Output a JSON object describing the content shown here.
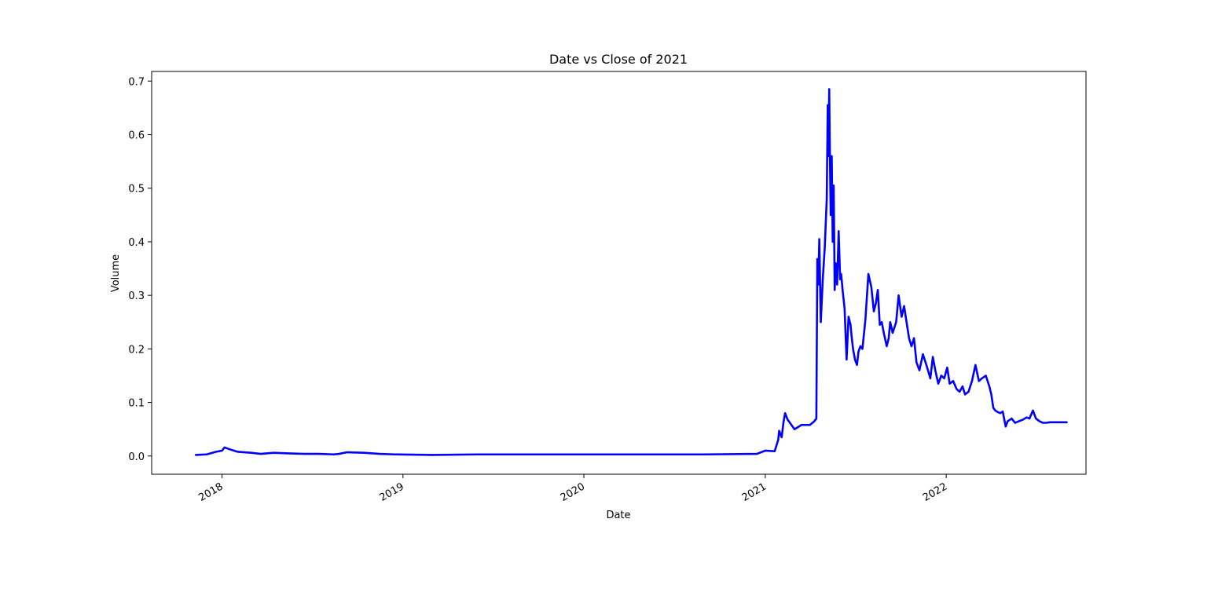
{
  "chart_data": {
    "type": "line",
    "title": "Date vs Close of 2021",
    "xlabel": "Date",
    "ylabel": "Volume",
    "xlim": [
      "2017-08-12",
      "2022-10-10"
    ],
    "ylim": [
      -0.034,
      0.718
    ],
    "x_ticks": [
      {
        "date": "2018-01-01",
        "label": "2018"
      },
      {
        "date": "2019-01-01",
        "label": "2019"
      },
      {
        "date": "2020-01-01",
        "label": "2020"
      },
      {
        "date": "2021-01-01",
        "label": "2021"
      },
      {
        "date": "2022-01-01",
        "label": "2022"
      }
    ],
    "y_ticks": [
      0.0,
      0.1,
      0.2,
      0.3,
      0.4,
      0.5,
      0.6,
      0.7
    ],
    "y_tick_labels": [
      "0.0",
      "0.1",
      "0.2",
      "0.3",
      "0.4",
      "0.5",
      "0.6",
      "0.7"
    ],
    "grid": false,
    "legend": "none",
    "colors": {
      "line": "#0000ff",
      "axes": "#000000",
      "background": "#ffffff"
    },
    "series": [
      {
        "x": [
          "2017-11-09",
          "2017-12-01",
          "2017-12-20",
          "2018-01-01",
          "2018-01-06",
          "2018-01-15",
          "2018-02-01",
          "2018-02-15",
          "2018-03-01",
          "2018-03-20",
          "2018-04-15",
          "2018-05-15",
          "2018-06-15",
          "2018-07-15",
          "2018-08-15",
          "2018-08-25",
          "2018-09-10",
          "2018-10-15",
          "2018-11-15",
          "2018-12-15",
          "2019-03-01",
          "2019-06-01",
          "2019-09-01",
          "2019-12-01",
          "2020-03-01",
          "2020-06-01",
          "2020-09-01",
          "2020-12-15",
          "2021-01-01",
          "2021-01-20",
          "2021-01-27",
          "2021-01-29",
          "2021-02-03",
          "2021-02-07",
          "2021-02-10",
          "2021-02-15",
          "2021-03-01",
          "2021-03-15",
          "2021-04-01",
          "2021-04-10",
          "2021-04-14",
          "2021-04-16",
          "2021-04-18",
          "2021-04-20",
          "2021-04-23",
          "2021-04-27",
          "2021-05-01",
          "2021-05-05",
          "2021-05-07",
          "2021-05-08",
          "2021-05-10",
          "2021-05-11",
          "2021-05-13",
          "2021-05-15",
          "2021-05-17",
          "2021-05-19",
          "2021-05-21",
          "2021-05-23",
          "2021-05-26",
          "2021-05-29",
          "2021-06-01",
          "2021-06-03",
          "2021-06-06",
          "2021-06-10",
          "2021-06-14",
          "2021-06-18",
          "2021-06-22",
          "2021-06-24",
          "2021-06-27",
          "2021-07-01",
          "2021-07-05",
          "2021-07-08",
          "2021-07-12",
          "2021-07-16",
          "2021-07-22",
          "2021-07-28",
          "2021-08-03",
          "2021-08-08",
          "2021-08-12",
          "2021-08-16",
          "2021-08-20",
          "2021-08-24",
          "2021-08-28",
          "2021-09-03",
          "2021-09-07",
          "2021-09-10",
          "2021-09-15",
          "2021-09-22",
          "2021-09-27",
          "2021-10-03",
          "2021-10-08",
          "2021-10-13",
          "2021-10-18",
          "2021-10-23",
          "2021-10-28",
          "2021-11-02",
          "2021-11-08",
          "2021-11-15",
          "2021-11-22",
          "2021-11-30",
          "2021-12-05",
          "2021-12-10",
          "2021-12-16",
          "2021-12-22",
          "2021-12-28",
          "2022-01-03",
          "2022-01-08",
          "2022-01-15",
          "2022-01-22",
          "2022-01-28",
          "2022-02-03",
          "2022-02-08",
          "2022-02-15",
          "2022-02-22",
          "2022-03-01",
          "2022-03-08",
          "2022-03-14",
          "2022-03-22",
          "2022-03-29",
          "2022-04-02",
          "2022-04-06",
          "2022-04-10",
          "2022-04-15",
          "2022-04-20",
          "2022-04-25",
          "2022-05-01",
          "2022-05-05",
          "2022-05-10",
          "2022-05-13",
          "2022-05-20",
          "2022-05-28",
          "2022-06-05",
          "2022-06-12",
          "2022-06-18",
          "2022-06-25",
          "2022-07-01",
          "2022-07-08",
          "2022-07-15",
          "2022-07-22",
          "2022-07-29",
          "2022-08-05",
          "2022-08-10",
          "2022-08-14",
          "2022-08-18",
          "2022-08-25",
          "2022-09-01"
        ],
        "y": [
          0.002,
          0.003,
          0.008,
          0.01,
          0.016,
          0.013,
          0.008,
          0.007,
          0.006,
          0.004,
          0.006,
          0.005,
          0.004,
          0.004,
          0.003,
          0.004,
          0.007,
          0.006,
          0.004,
          0.003,
          0.002,
          0.003,
          0.003,
          0.003,
          0.003,
          0.003,
          0.003,
          0.004,
          0.01,
          0.009,
          0.03,
          0.047,
          0.035,
          0.065,
          0.08,
          0.068,
          0.05,
          0.058,
          0.058,
          0.065,
          0.07,
          0.368,
          0.32,
          0.405,
          0.25,
          0.33,
          0.39,
          0.48,
          0.655,
          0.56,
          0.685,
          0.59,
          0.45,
          0.56,
          0.4,
          0.505,
          0.31,
          0.36,
          0.32,
          0.42,
          0.33,
          0.34,
          0.31,
          0.275,
          0.18,
          0.26,
          0.245,
          0.225,
          0.2,
          0.18,
          0.17,
          0.195,
          0.205,
          0.2,
          0.255,
          0.34,
          0.315,
          0.27,
          0.285,
          0.31,
          0.245,
          0.25,
          0.23,
          0.205,
          0.22,
          0.25,
          0.23,
          0.25,
          0.3,
          0.26,
          0.28,
          0.25,
          0.22,
          0.205,
          0.22,
          0.175,
          0.16,
          0.19,
          0.17,
          0.145,
          0.185,
          0.16,
          0.135,
          0.15,
          0.145,
          0.165,
          0.135,
          0.14,
          0.125,
          0.12,
          0.13,
          0.115,
          0.12,
          0.14,
          0.17,
          0.14,
          0.145,
          0.15,
          0.13,
          0.115,
          0.09,
          0.085,
          0.082,
          0.08,
          0.083,
          0.055,
          0.065,
          0.068,
          0.07,
          0.062,
          0.065,
          0.068,
          0.072,
          0.07,
          0.085,
          0.07,
          0.065,
          0.062,
          0.062,
          0.063,
          0.063,
          0.063,
          0.063,
          0.063,
          0.063,
          0.063
        ]
      }
    ]
  }
}
